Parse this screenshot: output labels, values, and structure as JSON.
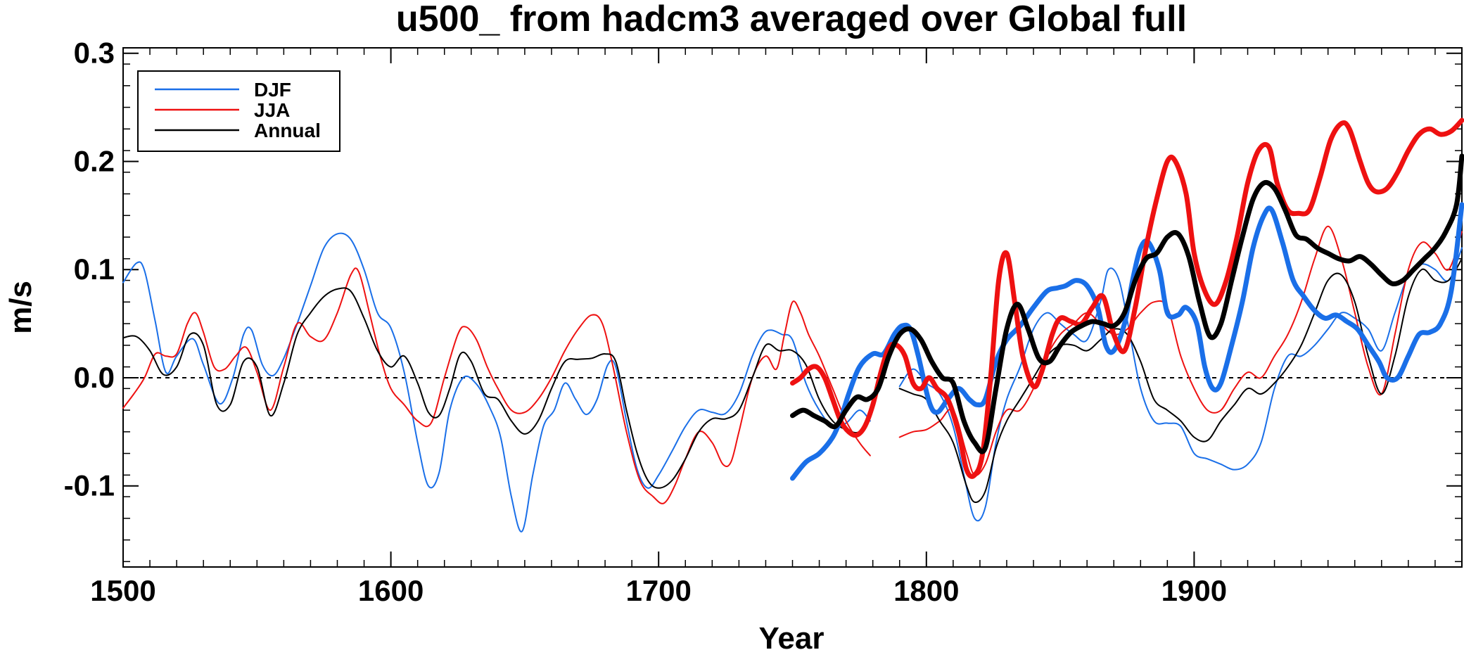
{
  "chart_data": {
    "type": "line",
    "title": "u500_ from hadcm3 averaged over Global full",
    "xlabel": "Year",
    "ylabel": "m/s",
    "xlim": [
      1500,
      2000
    ],
    "ylim": [
      -0.175,
      0.305
    ],
    "xticks": [
      1500,
      1600,
      1700,
      1800,
      1900
    ],
    "xtick_labels": [
      "1500",
      "1600",
      "1700",
      "1800",
      "1900"
    ],
    "yticks": [
      -0.1,
      0.0,
      0.1,
      0.2,
      0.3
    ],
    "ytick_labels": [
      "-0.1",
      "0.0",
      "0.1",
      "0.2",
      "0.3"
    ],
    "reference_line": {
      "y": 0.0,
      "style": "dashed"
    },
    "legend": {
      "position": "top-left",
      "entries": [
        {
          "label": "DJF",
          "color": "#1a6fe8"
        },
        {
          "label": "JJA",
          "color": "#ee1111"
        },
        {
          "label": "Annual",
          "color": "#000000"
        }
      ]
    },
    "colors": {
      "DJF": "#1a6fe8",
      "JJA": "#ee1111",
      "Annual": "#000000"
    },
    "series": [
      {
        "name": "DJF",
        "weight": "thin",
        "color": "#1a6fe8",
        "x": [
          1500,
          1505,
          1508,
          1512,
          1516,
          1520,
          1526,
          1530,
          1536,
          1541,
          1545,
          1548,
          1552,
          1556,
          1560,
          1565,
          1570,
          1575,
          1580,
          1585,
          1590,
          1595,
          1600,
          1605,
          1610,
          1614,
          1618,
          1622,
          1627,
          1632,
          1637,
          1641,
          1645,
          1649,
          1653,
          1657,
          1661,
          1665,
          1669,
          1673,
          1677,
          1681,
          1684,
          1688,
          1692,
          1696,
          1700,
          1705,
          1710,
          1715,
          1720,
          1725,
          1730,
          1735,
          1739,
          1742,
          1746,
          1750,
          1755,
          1760,
          1765,
          1770,
          1775,
          1779
        ],
        "y": [
          0.088,
          0.106,
          0.099,
          0.052,
          0.005,
          0.02,
          0.036,
          0.012,
          -0.024,
          0.0,
          0.04,
          0.044,
          0.012,
          0.002,
          0.018,
          0.05,
          0.085,
          0.12,
          0.133,
          0.128,
          0.1,
          0.06,
          0.046,
          0.005,
          -0.06,
          -0.1,
          -0.088,
          -0.03,
          0.0,
          -0.006,
          -0.028,
          -0.055,
          -0.11,
          -0.142,
          -0.09,
          -0.045,
          -0.03,
          -0.005,
          -0.02,
          -0.034,
          -0.02,
          0.012,
          0.01,
          -0.04,
          -0.085,
          -0.102,
          -0.09,
          -0.068,
          -0.045,
          -0.03,
          -0.032,
          -0.033,
          -0.015,
          0.02,
          0.04,
          0.044,
          0.04,
          0.035,
          -0.005,
          -0.03,
          -0.045,
          -0.042,
          -0.03,
          -0.04
        ]
      },
      {
        "name": "JJA",
        "weight": "thin",
        "color": "#ee1111",
        "x": [
          1500,
          1504,
          1508,
          1512,
          1516,
          1520,
          1524,
          1527,
          1530,
          1534,
          1538,
          1542,
          1546,
          1550,
          1555,
          1560,
          1565,
          1570,
          1575,
          1580,
          1585,
          1588,
          1592,
          1596,
          1600,
          1605,
          1610,
          1615,
          1620,
          1625,
          1628,
          1632,
          1636,
          1640,
          1645,
          1650,
          1655,
          1660,
          1665,
          1670,
          1675,
          1679,
          1683,
          1688,
          1693,
          1698,
          1702,
          1706,
          1710,
          1715,
          1720,
          1724,
          1727,
          1730,
          1735,
          1740,
          1744,
          1747,
          1750,
          1753,
          1756,
          1760,
          1765,
          1770,
          1775,
          1779
        ],
        "y": [
          -0.028,
          -0.015,
          0.0,
          0.022,
          0.02,
          0.022,
          0.05,
          0.06,
          0.042,
          0.01,
          0.008,
          0.02,
          0.028,
          0.005,
          -0.03,
          0.01,
          0.05,
          0.038,
          0.035,
          0.06,
          0.095,
          0.098,
          0.06,
          0.02,
          -0.01,
          -0.025,
          -0.04,
          -0.042,
          0.0,
          0.04,
          0.047,
          0.035,
          0.01,
          -0.01,
          -0.03,
          -0.032,
          -0.02,
          0.0,
          0.025,
          0.045,
          0.058,
          0.05,
          0.01,
          -0.05,
          -0.095,
          -0.11,
          -0.116,
          -0.1,
          -0.075,
          -0.05,
          -0.06,
          -0.08,
          -0.078,
          -0.05,
          0.0,
          0.02,
          0.008,
          0.04,
          0.07,
          0.06,
          0.04,
          0.02,
          -0.01,
          -0.04,
          -0.06,
          -0.072
        ]
      },
      {
        "name": "Annual",
        "weight": "thin",
        "color": "#000000",
        "x": [
          1500,
          1505,
          1510,
          1515,
          1520,
          1525,
          1530,
          1535,
          1540,
          1545,
          1550,
          1555,
          1560,
          1565,
          1570,
          1575,
          1580,
          1585,
          1590,
          1595,
          1600,
          1605,
          1610,
          1614,
          1618,
          1622,
          1626,
          1630,
          1635,
          1640,
          1645,
          1650,
          1655,
          1660,
          1665,
          1670,
          1675,
          1680,
          1684,
          1688,
          1692,
          1696,
          1700,
          1705,
          1710,
          1715,
          1720,
          1725,
          1730,
          1735,
          1740,
          1745,
          1750,
          1755,
          1760,
          1765,
          1770,
          1775,
          1779
        ],
        "y": [
          0.037,
          0.038,
          0.025,
          0.003,
          0.01,
          0.04,
          0.03,
          -0.025,
          -0.025,
          0.015,
          0.01,
          -0.035,
          -0.005,
          0.04,
          0.06,
          0.075,
          0.082,
          0.08,
          0.055,
          0.025,
          0.01,
          0.02,
          -0.005,
          -0.032,
          -0.035,
          -0.01,
          0.022,
          0.015,
          -0.015,
          -0.02,
          -0.04,
          -0.052,
          -0.04,
          -0.01,
          0.015,
          0.017,
          0.018,
          0.022,
          0.015,
          -0.03,
          -0.07,
          -0.095,
          -0.102,
          -0.095,
          -0.075,
          -0.05,
          -0.038,
          -0.038,
          -0.03,
          0.0,
          0.03,
          0.025,
          0.025,
          0.012,
          -0.02,
          -0.04,
          -0.048,
          -0.05,
          -0.035
        ]
      },
      {
        "name": "DJF",
        "weight": "thin",
        "color": "#1a6fe8",
        "x": [
          1790,
          1795,
          1800,
          1805,
          1810,
          1814,
          1818,
          1822,
          1826,
          1830,
          1835,
          1840,
          1845,
          1850,
          1855,
          1860,
          1865,
          1868,
          1872,
          1876,
          1880,
          1885,
          1890,
          1895,
          1900,
          1905,
          1910,
          1915,
          1920,
          1925,
          1930,
          1935,
          1940,
          1945,
          1950,
          1955,
          1960,
          1965,
          1970,
          1975,
          1980,
          1985,
          1990,
          1995,
          2000
        ],
        "y": [
          -0.008,
          0.008,
          -0.005,
          -0.015,
          -0.045,
          -0.09,
          -0.13,
          -0.12,
          -0.06,
          -0.02,
          0.01,
          0.045,
          0.06,
          0.05,
          0.04,
          0.035,
          0.07,
          0.1,
          0.09,
          0.04,
          -0.01,
          -0.04,
          -0.042,
          -0.045,
          -0.07,
          -0.075,
          -0.08,
          -0.085,
          -0.08,
          -0.06,
          -0.01,
          0.02,
          0.02,
          0.03,
          0.045,
          0.06,
          0.055,
          0.045,
          0.025,
          0.06,
          0.095,
          0.105,
          0.1,
          0.09,
          0.12
        ]
      },
      {
        "name": "JJA",
        "weight": "thin",
        "color": "#ee1111",
        "x": [
          1790,
          1795,
          1800,
          1805,
          1810,
          1815,
          1818,
          1822,
          1826,
          1830,
          1835,
          1840,
          1845,
          1850,
          1855,
          1860,
          1865,
          1870,
          1875,
          1880,
          1885,
          1890,
          1895,
          1900,
          1905,
          1910,
          1915,
          1920,
          1925,
          1930,
          1935,
          1940,
          1945,
          1950,
          1955,
          1960,
          1965,
          1970,
          1975,
          1980,
          1985,
          1990,
          1995,
          2000
        ],
        "y": [
          -0.055,
          -0.05,
          -0.048,
          -0.04,
          -0.03,
          -0.07,
          -0.09,
          -0.08,
          -0.05,
          -0.03,
          -0.03,
          -0.01,
          0.02,
          0.04,
          0.05,
          0.06,
          0.05,
          0.04,
          0.045,
          0.06,
          0.07,
          0.065,
          0.02,
          -0.01,
          -0.03,
          -0.03,
          -0.01,
          0.005,
          0.0,
          0.02,
          0.04,
          0.07,
          0.11,
          0.14,
          0.11,
          0.06,
          0.01,
          -0.015,
          0.04,
          0.1,
          0.125,
          0.115,
          0.1,
          0.135
        ]
      },
      {
        "name": "Annual",
        "weight": "thin",
        "color": "#000000",
        "x": [
          1790,
          1795,
          1800,
          1805,
          1810,
          1815,
          1818,
          1822,
          1826,
          1830,
          1835,
          1840,
          1845,
          1850,
          1855,
          1860,
          1865,
          1870,
          1875,
          1880,
          1885,
          1890,
          1895,
          1900,
          1905,
          1910,
          1915,
          1920,
          1925,
          1930,
          1935,
          1940,
          1945,
          1950,
          1955,
          1960,
          1965,
          1970,
          1975,
          1980,
          1985,
          1990,
          1995,
          2000
        ],
        "y": [
          -0.01,
          -0.015,
          -0.02,
          -0.04,
          -0.06,
          -0.1,
          -0.115,
          -0.105,
          -0.065,
          -0.04,
          -0.02,
          0.0,
          0.02,
          0.03,
          0.03,
          0.025,
          0.035,
          0.045,
          0.04,
          0.015,
          -0.02,
          -0.03,
          -0.04,
          -0.055,
          -0.058,
          -0.04,
          -0.025,
          -0.01,
          -0.015,
          -0.005,
          0.01,
          0.03,
          0.06,
          0.09,
          0.095,
          0.07,
          0.02,
          -0.015,
          0.02,
          0.075,
          0.1,
          0.09,
          0.09,
          0.11
        ]
      },
      {
        "name": "DJF",
        "weight": "thick",
        "color": "#1a6fe8",
        "x": [
          1750,
          1755,
          1760,
          1765,
          1768,
          1771,
          1775,
          1780,
          1784,
          1788,
          1791,
          1794,
          1797,
          1801,
          1804,
          1808,
          1812,
          1816,
          1819,
          1822,
          1826,
          1830,
          1835,
          1840,
          1845,
          1849,
          1852,
          1856,
          1860,
          1864,
          1867,
          1870,
          1874,
          1877,
          1880,
          1883,
          1887,
          1890,
          1894,
          1897,
          1901,
          1904,
          1907,
          1910,
          1914,
          1918,
          1922,
          1926,
          1929,
          1933,
          1937,
          1941,
          1945,
          1949,
          1953,
          1957,
          1961,
          1965,
          1969,
          1972,
          1976,
          1980,
          1984,
          1988,
          1992,
          1996,
          2000
        ],
        "y": [
          -0.093,
          -0.078,
          -0.07,
          -0.055,
          -0.038,
          -0.015,
          0.01,
          0.022,
          0.022,
          0.04,
          0.048,
          0.045,
          0.02,
          -0.022,
          -0.032,
          -0.02,
          -0.01,
          -0.02,
          -0.025,
          -0.02,
          0.015,
          0.035,
          0.048,
          0.065,
          0.08,
          0.083,
          0.085,
          0.09,
          0.085,
          0.065,
          0.03,
          0.025,
          0.05,
          0.09,
          0.12,
          0.125,
          0.1,
          0.06,
          0.058,
          0.065,
          0.05,
          0.01,
          -0.01,
          -0.005,
          0.03,
          0.07,
          0.12,
          0.15,
          0.155,
          0.125,
          0.09,
          0.075,
          0.062,
          0.055,
          0.058,
          0.052,
          0.045,
          0.03,
          0.015,
          0.0,
          0.0,
          0.02,
          0.04,
          0.042,
          0.05,
          0.08,
          0.16
        ]
      },
      {
        "name": "JJA",
        "weight": "thick",
        "color": "#ee1111",
        "x": [
          1750,
          1753,
          1756,
          1759,
          1762,
          1765,
          1768,
          1771,
          1774,
          1777,
          1780,
          1783,
          1786,
          1789,
          1792,
          1795,
          1798,
          1801,
          1804,
          1808,
          1812,
          1815,
          1818,
          1821,
          1824,
          1827,
          1830,
          1833,
          1836,
          1840,
          1843,
          1847,
          1850,
          1854,
          1858,
          1862,
          1866,
          1870,
          1874,
          1878,
          1882,
          1886,
          1890,
          1893,
          1897,
          1900,
          1904,
          1908,
          1912,
          1916,
          1920,
          1924,
          1928,
          1931,
          1935,
          1939,
          1943,
          1947,
          1951,
          1955,
          1958,
          1962,
          1965,
          1968,
          1972,
          1976,
          1980,
          1984,
          1988,
          1992,
          1996,
          2000
        ],
        "y": [
          -0.005,
          0.0,
          0.008,
          0.01,
          0.0,
          -0.02,
          -0.04,
          -0.05,
          -0.053,
          -0.045,
          -0.025,
          0.005,
          0.028,
          0.03,
          0.02,
          -0.005,
          -0.01,
          0.0,
          -0.01,
          -0.02,
          -0.05,
          -0.085,
          -0.09,
          -0.07,
          0.0,
          0.09,
          0.115,
          0.07,
          0.02,
          -0.008,
          0.005,
          0.04,
          0.055,
          0.052,
          0.05,
          0.065,
          0.075,
          0.04,
          0.025,
          0.065,
          0.12,
          0.165,
          0.2,
          0.2,
          0.17,
          0.115,
          0.08,
          0.068,
          0.09,
          0.13,
          0.18,
          0.21,
          0.213,
          0.18,
          0.155,
          0.152,
          0.155,
          0.185,
          0.22,
          0.235,
          0.23,
          0.2,
          0.18,
          0.172,
          0.175,
          0.19,
          0.21,
          0.225,
          0.23,
          0.225,
          0.228,
          0.238
        ]
      },
      {
        "name": "Annual",
        "weight": "thick",
        "color": "#000000",
        "x": [
          1750,
          1754,
          1758,
          1762,
          1766,
          1770,
          1774,
          1778,
          1782,
          1786,
          1790,
          1794,
          1798,
          1802,
          1806,
          1810,
          1814,
          1818,
          1822,
          1826,
          1830,
          1834,
          1838,
          1842,
          1846,
          1850,
          1854,
          1858,
          1862,
          1866,
          1870,
          1874,
          1878,
          1882,
          1886,
          1890,
          1894,
          1898,
          1902,
          1906,
          1910,
          1914,
          1918,
          1922,
          1926,
          1930,
          1934,
          1938,
          1942,
          1946,
          1950,
          1954,
          1958,
          1962,
          1966,
          1970,
          1974,
          1978,
          1982,
          1986,
          1990,
          1994,
          1998,
          2000
        ],
        "y": [
          -0.035,
          -0.03,
          -0.035,
          -0.04,
          -0.045,
          -0.03,
          -0.018,
          -0.02,
          -0.01,
          0.02,
          0.04,
          0.045,
          0.035,
          0.015,
          0.0,
          -0.005,
          -0.04,
          -0.06,
          -0.065,
          -0.01,
          0.045,
          0.068,
          0.045,
          0.018,
          0.015,
          0.03,
          0.042,
          0.048,
          0.052,
          0.05,
          0.048,
          0.06,
          0.09,
          0.11,
          0.115,
          0.13,
          0.133,
          0.112,
          0.07,
          0.038,
          0.05,
          0.09,
          0.13,
          0.165,
          0.18,
          0.175,
          0.155,
          0.132,
          0.128,
          0.12,
          0.115,
          0.11,
          0.108,
          0.112,
          0.105,
          0.095,
          0.087,
          0.09,
          0.1,
          0.11,
          0.12,
          0.135,
          0.16,
          0.205
        ]
      }
    ]
  }
}
